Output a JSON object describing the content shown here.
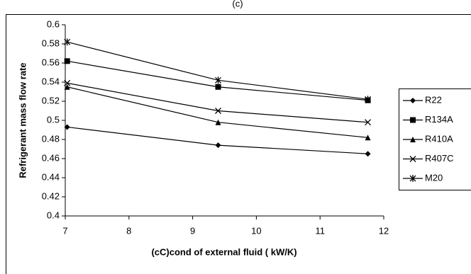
{
  "chart_data": {
    "type": "line",
    "title": "(c)",
    "x_label": "(cC)cond  of external fluid ( kW/K)",
    "y_label": "Refrigerant mass flow rate",
    "x": [
      7.03,
      9.4,
      11.75
    ],
    "series": [
      {
        "name": "R22",
        "color": "#000000",
        "marker": "diamond",
        "values": [
          0.493,
          0.474,
          0.465
        ]
      },
      {
        "name": "R134A",
        "color": "#000000",
        "marker": "square",
        "values": [
          0.562,
          0.535,
          0.521
        ]
      },
      {
        "name": "R410A",
        "color": "#000000",
        "marker": "triangle",
        "values": [
          0.535,
          0.498,
          0.482
        ]
      },
      {
        "name": "R407C",
        "color": "#000000",
        "marker": "x",
        "values": [
          0.539,
          0.51,
          0.498
        ]
      },
      {
        "name": "M20",
        "color": "#000000",
        "marker": "star",
        "values": [
          0.582,
          0.542,
          0.522
        ]
      }
    ],
    "xlim": [
      7,
      12
    ],
    "xticks": [
      7,
      8,
      9,
      10,
      11,
      12
    ],
    "ylim": [
      0.4,
      0.6
    ],
    "yticks": [
      0.4,
      0.42,
      0.44,
      0.46,
      0.48,
      0.5,
      0.52,
      0.54,
      0.56,
      0.58,
      0.6
    ],
    "grid": false,
    "legend": "right"
  }
}
